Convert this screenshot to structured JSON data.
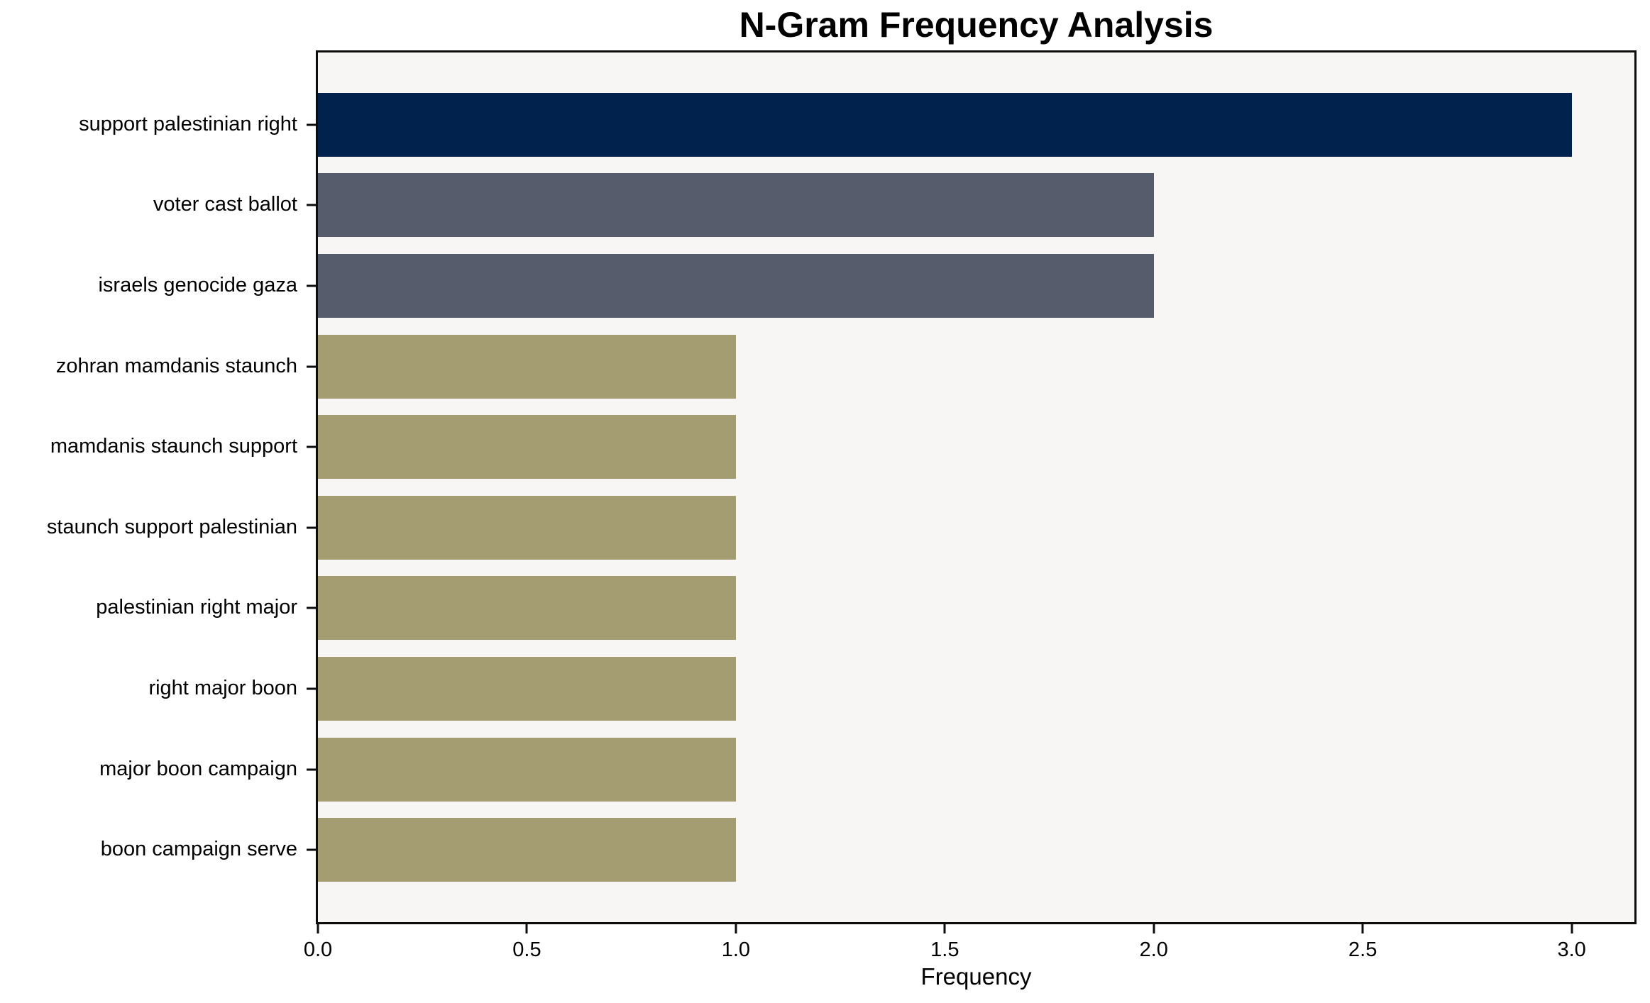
{
  "chart_data": {
    "type": "bar",
    "orientation": "horizontal",
    "title": "N-Gram Frequency Analysis",
    "xlabel": "Frequency",
    "ylabel": "",
    "categories": [
      "support palestinian right",
      "voter cast ballot",
      "israels genocide gaza",
      "zohran mamdanis staunch",
      "mamdanis staunch support",
      "staunch support palestinian",
      "palestinian right major",
      "right major boon",
      "major boon campaign",
      "boon campaign serve"
    ],
    "values": [
      3,
      2,
      2,
      1,
      1,
      1,
      1,
      1,
      1,
      1
    ],
    "bar_colors": [
      "#02224E",
      "#575C6C",
      "#575C6C",
      "#A49D72",
      "#A49D72",
      "#A49D72",
      "#A49D72",
      "#A49D72",
      "#A49D72",
      "#A49D72"
    ],
    "xlim": [
      0,
      3.15
    ],
    "xticks": [
      0,
      0.5,
      1,
      1.5,
      2,
      2.5,
      3
    ],
    "xtick_labels": [
      "0.0",
      "0.5",
      "1.0",
      "1.5",
      "2.0",
      "2.5",
      "3.0"
    ],
    "grid": false,
    "legend_position": "none",
    "plot_background": "#F7F6F5",
    "figure_background": "#FFFFFF",
    "axis_color": "#0d0d0d",
    "text_color": "#000000"
  }
}
